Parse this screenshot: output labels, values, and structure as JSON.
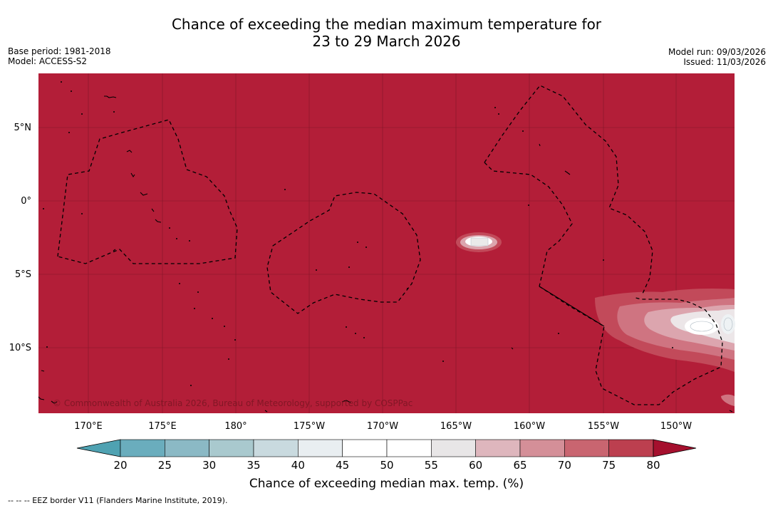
{
  "header": {
    "title_line1": "Chance of exceeding the median maximum temperature for",
    "title_line2": "23 to 29 March 2026",
    "base_period": "Base period: 1981-2018",
    "model": "Model: ACCESS-S2",
    "model_run": "Model run: 09/03/2026",
    "issued": "Issued: 11/03/2026"
  },
  "map": {
    "background_color": "#b31e38",
    "latitude_labels": [
      "5°N",
      "0°",
      "5°S",
      "10°S"
    ],
    "longitude_labels": [
      "170°E",
      "175°E",
      "180°",
      "175°W",
      "170°W",
      "165°W",
      "160°W",
      "155°W",
      "150°W"
    ],
    "copyright": "© Commonwealth of Australia 2026, Bureau of Meteorology, supported by COSPPac"
  },
  "colorbar": {
    "ticks": [
      "20",
      "25",
      "30",
      "35",
      "40",
      "45",
      "50",
      "55",
      "60",
      "65",
      "70",
      "75",
      "80"
    ],
    "colors": [
      "#6aadbd",
      "#8bb9c5",
      "#a9c9ce",
      "#c9dadf",
      "#e9eef1",
      "#ffffff",
      "#ffffff",
      "#e8e6e7",
      "#deb6bd",
      "#d48f98",
      "#c96570",
      "#bc3f4f"
    ],
    "under_color": "#4fa2b2",
    "over_color": "#a5102e",
    "label": "Chance of exceeding median max. temp. (%)"
  },
  "footnote": "--  --  -- EEZ border V11 (Flanders Marine Institute, 2019)."
}
